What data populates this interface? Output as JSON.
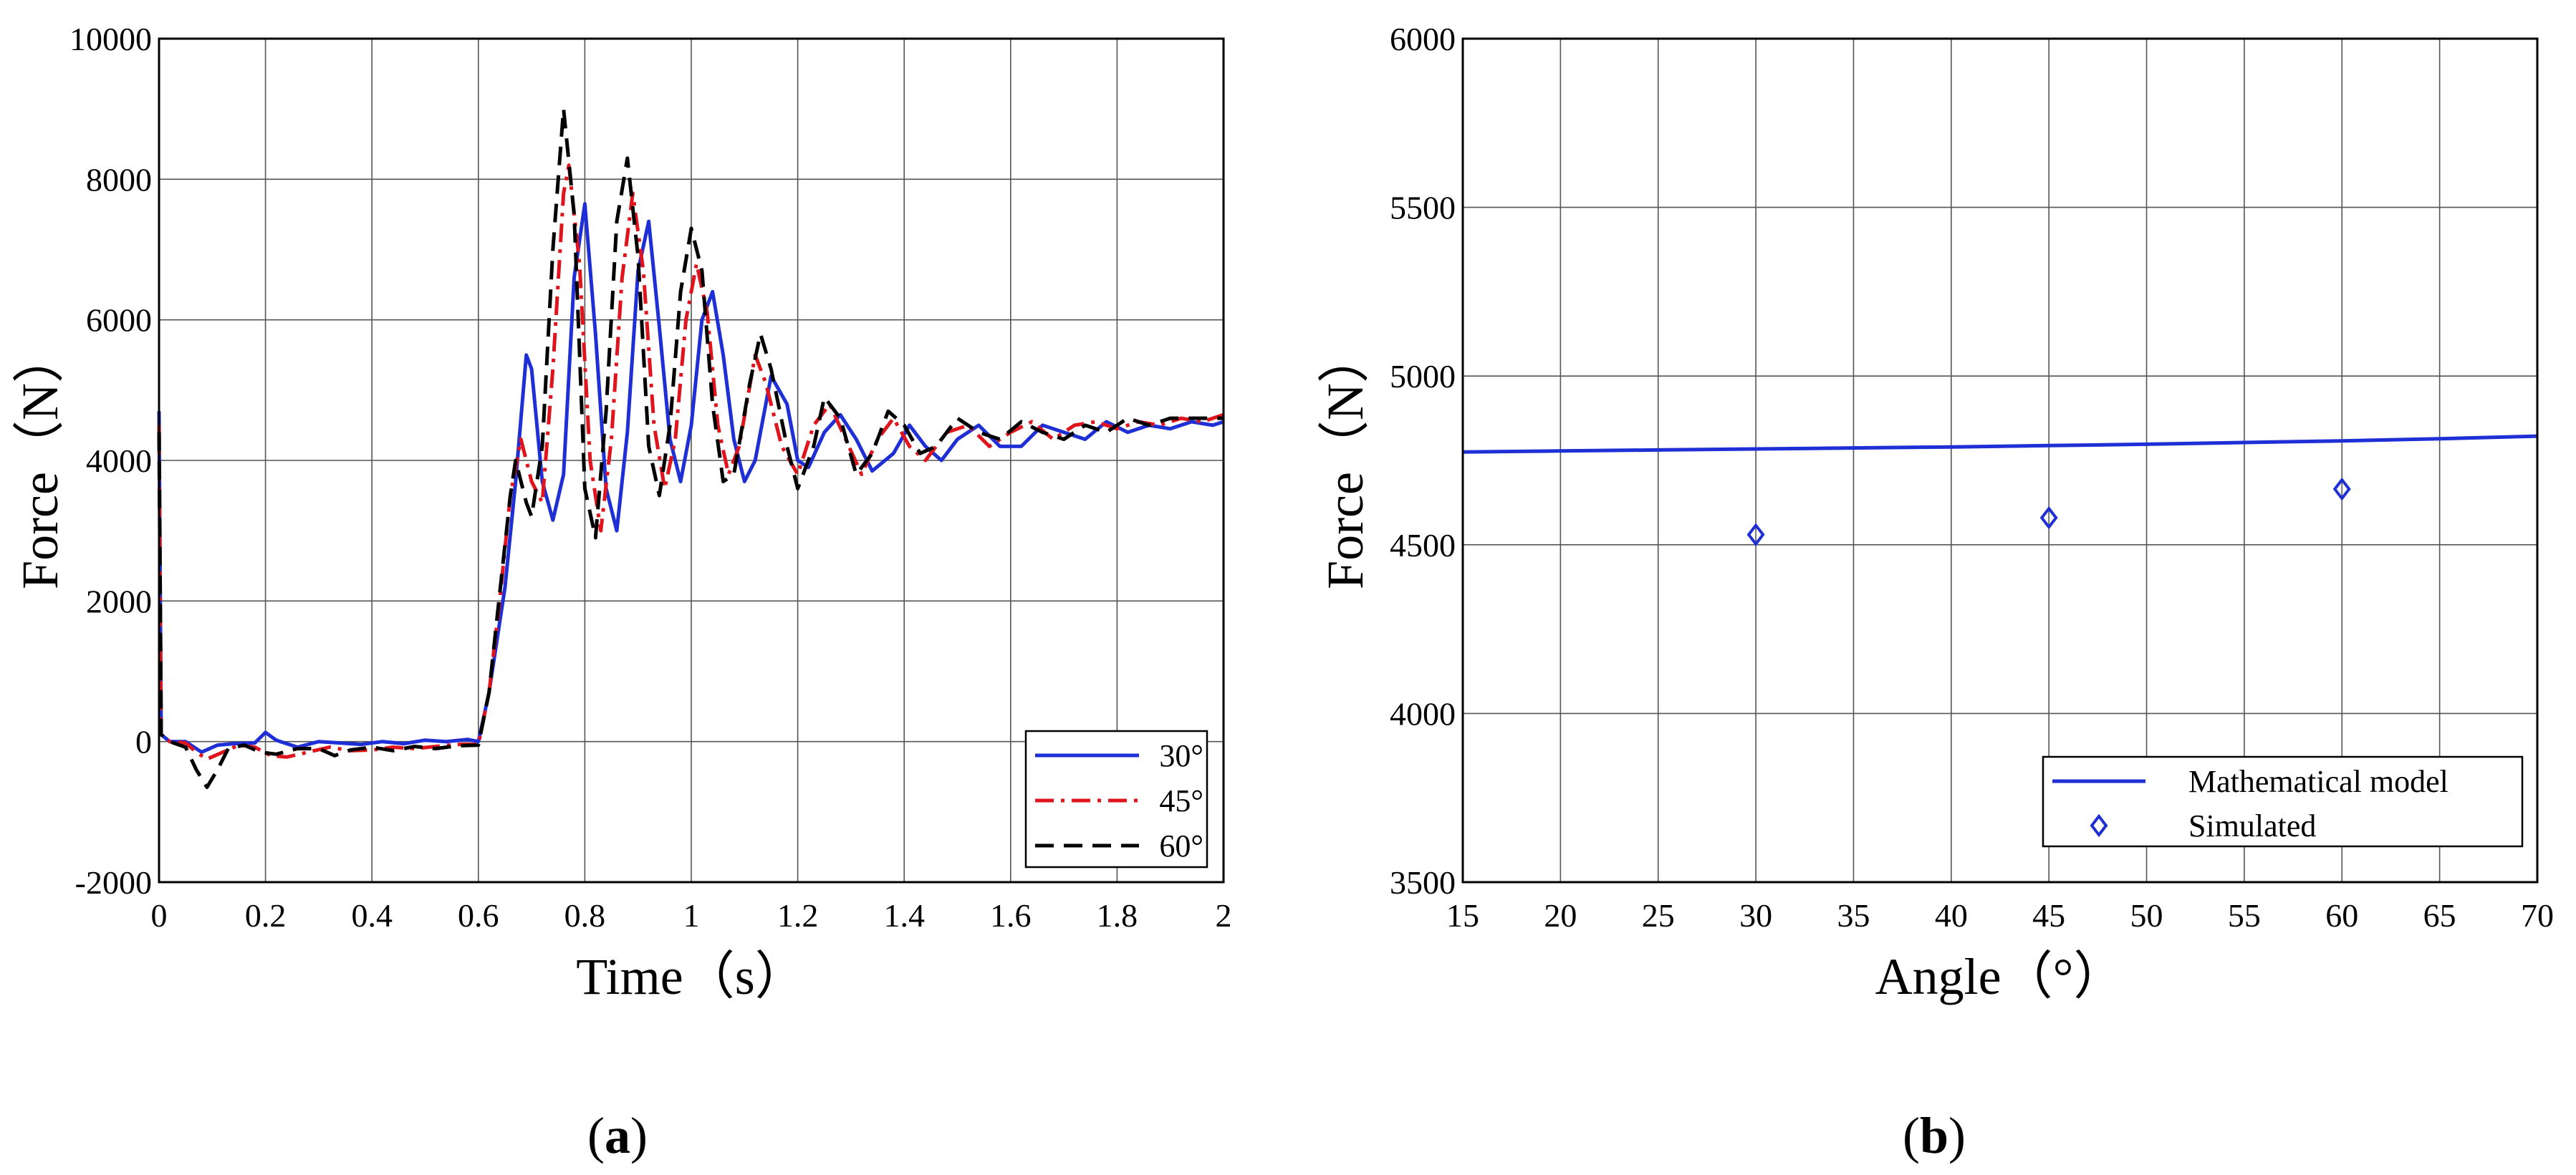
{
  "chart_data": [
    {
      "type": "line",
      "panel_label_open": "(",
      "panel_label_letter": "a",
      "panel_label_close": ")",
      "xlabel": "Time（s）",
      "ylabel": "Force（N）",
      "xlim": [
        0,
        2
      ],
      "ylim": [
        -2000,
        10000
      ],
      "xticks": [
        0,
        0.2,
        0.4,
        0.6,
        0.8,
        1,
        1.2,
        1.4,
        1.6,
        1.8,
        2
      ],
      "xtick_labels": [
        "0",
        "0.2",
        "0.4",
        "0.6",
        "0.8",
        "1",
        "1.2",
        "1.4",
        "1.6",
        "1.8",
        "2"
      ],
      "yticks": [
        -2000,
        0,
        2000,
        4000,
        6000,
        8000,
        10000
      ],
      "ytick_labels": [
        "-2000",
        "0",
        "2000",
        "4000",
        "6000",
        "8000",
        "10000"
      ],
      "grid": true,
      "legend_position": "bottom-right",
      "series": [
        {
          "name": "30°",
          "color": "#1f2fd6",
          "dash": "solid",
          "points": [
            [
              0,
              4700
            ],
            [
              0.004,
              100
            ],
            [
              0.02,
              0
            ],
            [
              0.05,
              0
            ],
            [
              0.08,
              -150
            ],
            [
              0.11,
              -50
            ],
            [
              0.14,
              -30
            ],
            [
              0.18,
              -20
            ],
            [
              0.2,
              130
            ],
            [
              0.22,
              20
            ],
            [
              0.26,
              -80
            ],
            [
              0.3,
              0
            ],
            [
              0.34,
              -20
            ],
            [
              0.38,
              -40
            ],
            [
              0.42,
              0
            ],
            [
              0.46,
              -30
            ],
            [
              0.5,
              20
            ],
            [
              0.54,
              0
            ],
            [
              0.58,
              30
            ],
            [
              0.6,
              0
            ],
            [
              0.62,
              700
            ],
            [
              0.65,
              2200
            ],
            [
              0.67,
              3700
            ],
            [
              0.69,
              5500
            ],
            [
              0.7,
              5300
            ],
            [
              0.72,
              3700
            ],
            [
              0.74,
              3150
            ],
            [
              0.76,
              3800
            ],
            [
              0.78,
              6600
            ],
            [
              0.8,
              7650
            ],
            [
              0.82,
              5800
            ],
            [
              0.84,
              3600
            ],
            [
              0.86,
              3000
            ],
            [
              0.88,
              4400
            ],
            [
              0.9,
              6700
            ],
            [
              0.92,
              7400
            ],
            [
              0.94,
              5900
            ],
            [
              0.96,
              4300
            ],
            [
              0.98,
              3700
            ],
            [
              1.0,
              4500
            ],
            [
              1.02,
              6000
            ],
            [
              1.04,
              6400
            ],
            [
              1.06,
              5500
            ],
            [
              1.08,
              4300
            ],
            [
              1.1,
              3700
            ],
            [
              1.12,
              4000
            ],
            [
              1.15,
              5200
            ],
            [
              1.18,
              4800
            ],
            [
              1.2,
              4000
            ],
            [
              1.22,
              3900
            ],
            [
              1.25,
              4400
            ],
            [
              1.28,
              4650
            ],
            [
              1.31,
              4300
            ],
            [
              1.34,
              3850
            ],
            [
              1.38,
              4100
            ],
            [
              1.41,
              4500
            ],
            [
              1.44,
              4200
            ],
            [
              1.47,
              4000
            ],
            [
              1.5,
              4300
            ],
            [
              1.54,
              4500
            ],
            [
              1.58,
              4200
            ],
            [
              1.62,
              4200
            ],
            [
              1.66,
              4500
            ],
            [
              1.7,
              4400
            ],
            [
              1.74,
              4300
            ],
            [
              1.78,
              4550
            ],
            [
              1.82,
              4400
            ],
            [
              1.86,
              4500
            ],
            [
              1.9,
              4450
            ],
            [
              1.94,
              4550
            ],
            [
              1.98,
              4500
            ],
            [
              2.0,
              4550
            ]
          ]
        },
        {
          "name": "45°",
          "color": "#e0141c",
          "dash": "dashdot",
          "points": [
            [
              0,
              4500
            ],
            [
              0.004,
              100
            ],
            [
              0.02,
              0
            ],
            [
              0.05,
              -20
            ],
            [
              0.07,
              -150
            ],
            [
              0.09,
              -250
            ],
            [
              0.12,
              -150
            ],
            [
              0.15,
              -50
            ],
            [
              0.18,
              -80
            ],
            [
              0.21,
              -200
            ],
            [
              0.24,
              -220
            ],
            [
              0.28,
              -150
            ],
            [
              0.32,
              -80
            ],
            [
              0.36,
              -130
            ],
            [
              0.4,
              -120
            ],
            [
              0.44,
              -80
            ],
            [
              0.48,
              -100
            ],
            [
              0.52,
              -70
            ],
            [
              0.56,
              -40
            ],
            [
              0.6,
              -40
            ],
            [
              0.62,
              700
            ],
            [
              0.64,
              2000
            ],
            [
              0.66,
              3500
            ],
            [
              0.68,
              4300
            ],
            [
              0.7,
              3700
            ],
            [
              0.72,
              3400
            ],
            [
              0.74,
              5300
            ],
            [
              0.76,
              7800
            ],
            [
              0.77,
              8200
            ],
            [
              0.79,
              6800
            ],
            [
              0.81,
              4000
            ],
            [
              0.83,
              3000
            ],
            [
              0.85,
              4300
            ],
            [
              0.87,
              6600
            ],
            [
              0.89,
              7800
            ],
            [
              0.91,
              6700
            ],
            [
              0.93,
              4500
            ],
            [
              0.95,
              3600
            ],
            [
              0.97,
              4300
            ],
            [
              0.99,
              6000
            ],
            [
              1.01,
              6800
            ],
            [
              1.03,
              6100
            ],
            [
              1.05,
              4500
            ],
            [
              1.07,
              3800
            ],
            [
              1.09,
              4200
            ],
            [
              1.12,
              5500
            ],
            [
              1.14,
              5100
            ],
            [
              1.17,
              4200
            ],
            [
              1.2,
              3800
            ],
            [
              1.23,
              4500
            ],
            [
              1.26,
              4800
            ],
            [
              1.29,
              4300
            ],
            [
              1.32,
              3800
            ],
            [
              1.35,
              4300
            ],
            [
              1.38,
              4600
            ],
            [
              1.41,
              4200
            ],
            [
              1.44,
              4000
            ],
            [
              1.48,
              4400
            ],
            [
              1.52,
              4500
            ],
            [
              1.56,
              4200
            ],
            [
              1.6,
              4400
            ],
            [
              1.64,
              4550
            ],
            [
              1.68,
              4300
            ],
            [
              1.72,
              4500
            ],
            [
              1.76,
              4550
            ],
            [
              1.8,
              4450
            ],
            [
              1.84,
              4550
            ],
            [
              1.88,
              4500
            ],
            [
              1.92,
              4600
            ],
            [
              1.96,
              4550
            ],
            [
              2.0,
              4650
            ]
          ]
        },
        {
          "name": "60°",
          "color": "#000000",
          "dash": "dashed",
          "points": [
            [
              0,
              4400
            ],
            [
              0.004,
              100
            ],
            [
              0.02,
              0
            ],
            [
              0.05,
              -80
            ],
            [
              0.07,
              -400
            ],
            [
              0.09,
              -650
            ],
            [
              0.11,
              -400
            ],
            [
              0.13,
              -100
            ],
            [
              0.16,
              -50
            ],
            [
              0.19,
              -150
            ],
            [
              0.22,
              -180
            ],
            [
              0.26,
              -100
            ],
            [
              0.3,
              -100
            ],
            [
              0.33,
              -200
            ],
            [
              0.36,
              -120
            ],
            [
              0.4,
              -80
            ],
            [
              0.44,
              -130
            ],
            [
              0.48,
              -70
            ],
            [
              0.52,
              -100
            ],
            [
              0.56,
              -60
            ],
            [
              0.6,
              -50
            ],
            [
              0.62,
              700
            ],
            [
              0.64,
              2100
            ],
            [
              0.66,
              3500
            ],
            [
              0.67,
              4000
            ],
            [
              0.69,
              3400
            ],
            [
              0.7,
              3200
            ],
            [
              0.72,
              4200
            ],
            [
              0.74,
              7000
            ],
            [
              0.76,
              9000
            ],
            [
              0.78,
              7500
            ],
            [
              0.8,
              3600
            ],
            [
              0.82,
              2900
            ],
            [
              0.84,
              4700
            ],
            [
              0.86,
              7400
            ],
            [
              0.88,
              8300
            ],
            [
              0.9,
              6900
            ],
            [
              0.92,
              4200
            ],
            [
              0.94,
              3500
            ],
            [
              0.96,
              4500
            ],
            [
              0.98,
              6400
            ],
            [
              1.0,
              7300
            ],
            [
              1.02,
              6700
            ],
            [
              1.04,
              4800
            ],
            [
              1.06,
              3700
            ],
            [
              1.08,
              3800
            ],
            [
              1.11,
              5100
            ],
            [
              1.13,
              5800
            ],
            [
              1.15,
              5300
            ],
            [
              1.18,
              4200
            ],
            [
              1.2,
              3600
            ],
            [
              1.23,
              4200
            ],
            [
              1.25,
              4900
            ],
            [
              1.28,
              4600
            ],
            [
              1.31,
              3800
            ],
            [
              1.34,
              4100
            ],
            [
              1.37,
              4700
            ],
            [
              1.4,
              4500
            ],
            [
              1.43,
              4100
            ],
            [
              1.46,
              4200
            ],
            [
              1.5,
              4600
            ],
            [
              1.54,
              4400
            ],
            [
              1.58,
              4300
            ],
            [
              1.62,
              4550
            ],
            [
              1.66,
              4400
            ],
            [
              1.7,
              4300
            ],
            [
              1.74,
              4500
            ],
            [
              1.78,
              4400
            ],
            [
              1.82,
              4600
            ],
            [
              1.86,
              4500
            ],
            [
              1.9,
              4600
            ],
            [
              1.94,
              4600
            ],
            [
              1.98,
              4600
            ],
            [
              2.0,
              4600
            ]
          ]
        }
      ]
    },
    {
      "type": "line",
      "panel_label_open": "(",
      "panel_label_letter": "b",
      "panel_label_close": ")",
      "xlabel": "Angle（°）",
      "ylabel": "Force（N）",
      "xlim": [
        15,
        70
      ],
      "ylim": [
        3500,
        6000
      ],
      "xticks": [
        15,
        20,
        25,
        30,
        35,
        40,
        45,
        50,
        55,
        60,
        65,
        70
      ],
      "xtick_labels": [
        "15",
        "20",
        "25",
        "30",
        "35",
        "40",
        "45",
        "50",
        "55",
        "60",
        "65",
        "70"
      ],
      "yticks": [
        3500,
        4000,
        4500,
        5000,
        5500,
        6000
      ],
      "ytick_labels": [
        "3500",
        "4000",
        "4500",
        "5000",
        "5500",
        "6000"
      ],
      "grid": true,
      "legend_position": "bottom-right",
      "series": [
        {
          "name": "Mathematical model",
          "color": "#1f2fd6",
          "marker": "none",
          "points": [
            [
              15,
              4775
            ],
            [
              20,
              4778
            ],
            [
              25,
              4781
            ],
            [
              30,
              4784
            ],
            [
              35,
              4787
            ],
            [
              40,
              4790
            ],
            [
              45,
              4794
            ],
            [
              50,
              4798
            ],
            [
              55,
              4803
            ],
            [
              60,
              4808
            ],
            [
              65,
              4814
            ],
            [
              70,
              4822
            ]
          ]
        },
        {
          "name": "Simulated",
          "color": "#1f2fd6",
          "marker": "diamond",
          "points": [
            [
              30,
              4530
            ],
            [
              45,
              4580
            ],
            [
              60,
              4665
            ]
          ]
        }
      ]
    }
  ]
}
